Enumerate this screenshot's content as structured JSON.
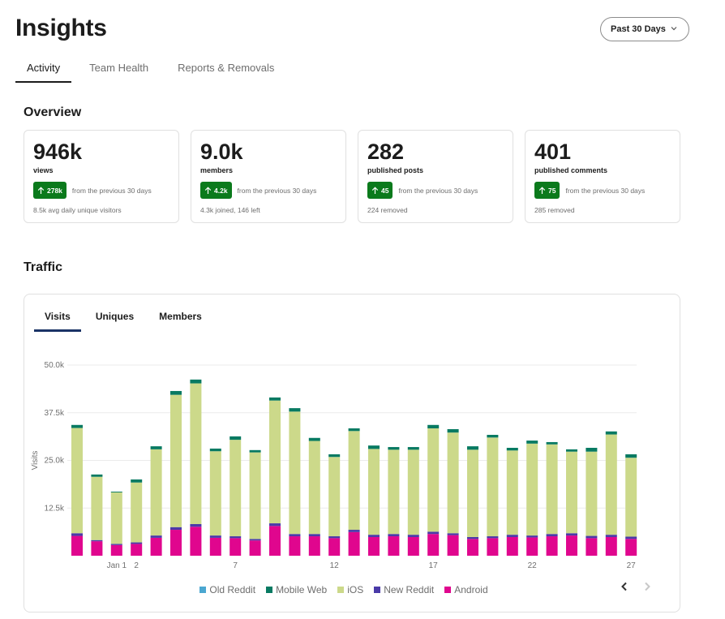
{
  "header": {
    "title": "Insights",
    "range_select": {
      "value": "Past 30 Days",
      "icon": "chevron-down-icon"
    }
  },
  "tabs": [
    {
      "label": "Activity",
      "active": true
    },
    {
      "label": "Team Health",
      "active": false
    },
    {
      "label": "Reports & Removals",
      "active": false
    }
  ],
  "overview": {
    "title": "Overview",
    "cards": [
      {
        "value": "946k",
        "label": "views",
        "delta": "278k",
        "delta_direction": "up",
        "delta_text": "from the previous 30 days",
        "sub": "8.5k avg daily unique visitors"
      },
      {
        "value": "9.0k",
        "label": "members",
        "delta": "4.2k",
        "delta_direction": "up",
        "delta_text": "from the previous 30 days",
        "sub": "4.3k joined, 146 left"
      },
      {
        "value": "282",
        "label": "published posts",
        "delta": "45",
        "delta_direction": "up",
        "delta_text": "from the previous 30 days",
        "sub": "224 removed"
      },
      {
        "value": "401",
        "label": "published comments",
        "delta": "75",
        "delta_direction": "up",
        "delta_text": "from the previous 30 days",
        "sub": "285 removed"
      }
    ]
  },
  "traffic": {
    "title": "Traffic",
    "tabs": [
      {
        "label": "Visits",
        "active": true
      },
      {
        "label": "Uniques",
        "active": false
      },
      {
        "label": "Members",
        "active": false
      }
    ],
    "pager": {
      "prev_icon": "chevron-left-icon",
      "next_icon": "chevron-right-icon",
      "next_disabled": true
    }
  },
  "colors": {
    "badge_green": "#0b7a1c",
    "active_tab_underline": "#1a3366",
    "gridline": "#ebebeb"
  },
  "chart_data": {
    "type": "bar",
    "stacked": true,
    "title": "",
    "xlabel": "",
    "ylabel": "Visits",
    "ylim": [
      0,
      50000
    ],
    "yticks": [
      12500,
      25000,
      37500,
      50000
    ],
    "ytick_labels": [
      "12.5k",
      "25.0k",
      "37.5k",
      "50.0k"
    ],
    "grid": true,
    "legend_position": "bottom-center",
    "categories": [
      "Dec 30",
      "Dec 31",
      "Jan 1",
      "Jan 2",
      "Jan 3",
      "Jan 4",
      "Jan 5",
      "Jan 6",
      "Jan 7",
      "Jan 8",
      "Jan 9",
      "Jan 10",
      "Jan 11",
      "Jan 12",
      "Jan 13",
      "Jan 14",
      "Jan 15",
      "Jan 16",
      "Jan 17",
      "Jan 18",
      "Jan 19",
      "Jan 20",
      "Jan 21",
      "Jan 22",
      "Jan 23",
      "Jan 24",
      "Jan 25",
      "Jan 26",
      "Jan 27"
    ],
    "xtick_labels": [
      {
        "index": 2,
        "label": "Jan 1"
      },
      {
        "index": 3,
        "label": "2"
      },
      {
        "index": 8,
        "label": "7"
      },
      {
        "index": 13,
        "label": "12"
      },
      {
        "index": 18,
        "label": "17"
      },
      {
        "index": 23,
        "label": "22"
      },
      {
        "index": 28,
        "label": "27"
      }
    ],
    "series": [
      {
        "name": "Android",
        "color": "#e0068e",
        "values": [
          5200,
          3800,
          2800,
          3100,
          4700,
          6800,
          7600,
          4700,
          4600,
          4000,
          7800,
          5100,
          5100,
          4600,
          6200,
          4900,
          5100,
          4900,
          5700,
          5400,
          4400,
          4600,
          4900,
          4800,
          5100,
          5300,
          4600,
          4900,
          4400
        ]
      },
      {
        "name": "New Reddit",
        "color": "#4a3aa8",
        "values": [
          700,
          300,
          300,
          400,
          600,
          700,
          700,
          600,
          500,
          400,
          700,
          600,
          600,
          500,
          600,
          600,
          600,
          600,
          600,
          500,
          500,
          500,
          600,
          500,
          600,
          600,
          600,
          600,
          600
        ]
      },
      {
        "name": "iOS",
        "color": "#ccd98a",
        "values": [
          27600,
          16600,
          13500,
          15700,
          22600,
          34700,
          36900,
          22100,
          25300,
          22700,
          32200,
          32100,
          24400,
          20800,
          25900,
          22500,
          22100,
          22300,
          27100,
          26400,
          22900,
          25900,
          22100,
          24100,
          23500,
          21400,
          22100,
          26300,
          20700
        ]
      },
      {
        "name": "Mobile Web",
        "color": "#087a62",
        "values": [
          800,
          600,
          200,
          800,
          800,
          1000,
          1000,
          700,
          900,
          600,
          800,
          900,
          800,
          700,
          700,
          900,
          700,
          700,
          900,
          900,
          900,
          700,
          700,
          800,
          600,
          600,
          1000,
          800,
          900
        ]
      },
      {
        "name": "Old Reddit",
        "color": "#4ba7d1",
        "values": [
          0,
          0,
          0,
          0,
          0,
          0,
          0,
          0,
          0,
          0,
          0,
          0,
          0,
          0,
          0,
          0,
          0,
          0,
          0,
          0,
          0,
          0,
          0,
          0,
          0,
          0,
          0,
          0,
          0
        ]
      }
    ],
    "legend": [
      {
        "name": "Old Reddit",
        "color": "#4ba7d1"
      },
      {
        "name": "Mobile Web",
        "color": "#087a62"
      },
      {
        "name": "iOS",
        "color": "#ccd98a"
      },
      {
        "name": "New Reddit",
        "color": "#4a3aa8"
      },
      {
        "name": "Android",
        "color": "#e0068e"
      }
    ]
  }
}
